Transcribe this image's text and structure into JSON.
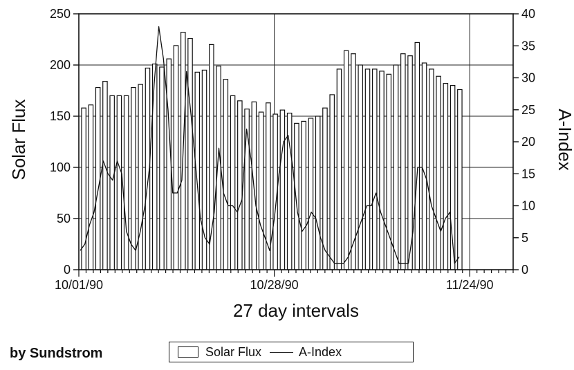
{
  "credit": "by Sundstrom",
  "legend": {
    "flux_label": "Solar Flux",
    "index_label": "A-Index"
  },
  "chart_data": {
    "type": "bar",
    "xlabel": "27 day intervals",
    "ylabel_left": "Solar Flux",
    "ylabel_right": "A-Index",
    "ylim_left": [
      0,
      250
    ],
    "ylim_right": [
      0,
      40
    ],
    "yticks_left": [
      0,
      50,
      100,
      150,
      200,
      250
    ],
    "yticks_right": [
      0,
      5,
      10,
      15,
      20,
      25,
      30,
      35,
      40
    ],
    "xtick_labels": [
      "10/01/90",
      "10/28/90",
      "11/24/90"
    ],
    "grid": true,
    "series": [
      {
        "name": "Solar Flux",
        "type": "bar",
        "axis": "left",
        "values": [
          158,
          161,
          178,
          184,
          170,
          170,
          170,
          178,
          181,
          197,
          201,
          198,
          206,
          219,
          232,
          226,
          193,
          195,
          220,
          199,
          186,
          170,
          165,
          157,
          164,
          154,
          163,
          152,
          156,
          153,
          143,
          145,
          148,
          150,
          158,
          171,
          196,
          214,
          211,
          200,
          196,
          196,
          194,
          191,
          200,
          211,
          209,
          222,
          202,
          196,
          189,
          182,
          180,
          176
        ]
      },
      {
        "name": "A-Index",
        "type": "line",
        "axis": "right",
        "values": [
          3,
          4,
          7,
          9,
          13,
          17,
          15,
          14,
          17,
          15,
          6,
          4,
          3,
          6,
          10,
          16,
          29,
          38,
          33,
          25,
          12,
          12,
          14,
          31,
          24,
          16,
          8,
          5,
          4,
          9,
          19,
          12,
          10,
          10,
          9,
          11,
          22,
          17,
          10,
          7,
          5,
          3,
          8,
          15,
          20,
          21,
          16,
          9,
          6,
          7,
          9,
          8,
          5,
          3,
          2,
          1,
          1,
          1,
          2,
          4,
          6,
          8,
          10,
          10,
          12,
          9,
          7,
          5,
          3,
          1,
          1,
          1,
          6,
          16,
          16,
          14,
          10,
          8,
          6,
          8,
          9,
          1,
          2
        ]
      }
    ]
  }
}
